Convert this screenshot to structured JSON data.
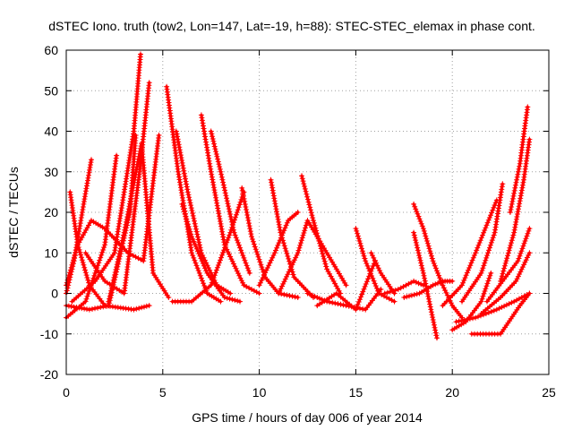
{
  "chart_data": {
    "type": "scatter",
    "title": "dSTEC Iono. truth (tow2, Lon=147, Lat=-19, h=88): STEC-STEC_elemax in phase cont.",
    "xlabel": "GPS time / hours of day 006 of year 2014",
    "ylabel": "dSTEC  / TECUs",
    "xlim": [
      0,
      25
    ],
    "ylim": [
      -20,
      60
    ],
    "xticks": [
      0,
      5,
      10,
      15,
      20,
      25
    ],
    "yticks": [
      -20,
      -10,
      0,
      10,
      20,
      30,
      40,
      50,
      60
    ],
    "grid": true,
    "marker": "+",
    "colors": {
      "series": "#ff0000",
      "grid": "#a0a0a0",
      "axes": "#000000"
    },
    "series": [
      {
        "x": [
          0.2,
          0.6,
          1.2,
          2.0,
          3.5,
          4.3
        ],
        "y": [
          25,
          12,
          2,
          -3,
          -4,
          -3
        ]
      },
      {
        "x": [
          0.0,
          0.4,
          0.9,
          1.3
        ],
        "y": [
          0,
          8,
          22,
          33
        ]
      },
      {
        "x": [
          0.0,
          1.0,
          2.0,
          2.6
        ],
        "y": [
          -6,
          -2,
          12,
          34
        ]
      },
      {
        "x": [
          0.0,
          1.2,
          2.2,
          3.3,
          3.6
        ],
        "y": [
          -3,
          -4,
          -3,
          20,
          39
        ]
      },
      {
        "x": [
          0.3,
          1.5,
          2.5,
          3.5,
          3.85
        ],
        "y": [
          -2,
          3,
          10,
          40,
          59
        ]
      },
      {
        "x": [
          1.0,
          2.0,
          3.0,
          3.8,
          4.3
        ],
        "y": [
          10,
          3,
          0,
          30,
          52
        ]
      },
      {
        "x": [
          0.0,
          0.6,
          1.3,
          2.0,
          3.2,
          4.0,
          4.8
        ],
        "y": [
          2,
          12,
          18,
          16,
          10,
          8,
          39
        ]
      },
      {
        "x": [
          2.2,
          3.0,
          3.9,
          4.5,
          5.3
        ],
        "y": [
          -2,
          15,
          37,
          5,
          -1
        ]
      },
      {
        "x": [
          5.2,
          5.8,
          6.5,
          7.3,
          8.0
        ],
        "y": [
          51,
          30,
          10,
          0,
          -2
        ]
      },
      {
        "x": [
          5.7,
          6.3,
          7.0,
          7.8,
          8.5
        ],
        "y": [
          40,
          25,
          10,
          2,
          0
        ]
      },
      {
        "x": [
          7.0,
          7.5,
          8.2,
          9.2,
          10.0
        ],
        "y": [
          44,
          30,
          12,
          2,
          0
        ]
      },
      {
        "x": [
          7.5,
          8.0,
          8.7,
          9.5
        ],
        "y": [
          40,
          30,
          15,
          5
        ]
      },
      {
        "x": [
          6.0,
          6.5,
          7.3,
          8.2,
          9.0
        ],
        "y": [
          22,
          14,
          5,
          -1,
          -2
        ]
      },
      {
        "x": [
          5.5,
          6.5,
          7.5,
          8.5,
          9.2
        ],
        "y": [
          -2,
          -2,
          2,
          15,
          25
        ]
      },
      {
        "x": [
          9.1,
          9.6,
          10.3,
          11.0,
          12.0
        ],
        "y": [
          26,
          14,
          4,
          0,
          -1
        ]
      },
      {
        "x": [
          10.6,
          11.1,
          11.8,
          12.8
        ],
        "y": [
          28,
          15,
          4,
          -1
        ]
      },
      {
        "x": [
          10.0,
          10.8,
          11.5,
          12.0
        ],
        "y": [
          2,
          10,
          18,
          20
        ]
      },
      {
        "x": [
          12.2,
          12.8,
          13.5,
          14.2
        ],
        "y": [
          29,
          18,
          6,
          0
        ]
      },
      {
        "x": [
          11.0,
          12.0,
          12.5,
          13.5,
          14.5
        ],
        "y": [
          0,
          10,
          18,
          10,
          2
        ]
      },
      {
        "x": [
          12.5,
          13.5,
          14.5,
          15.5,
          16.3
        ],
        "y": [
          0,
          -2,
          -3,
          -4,
          1
        ]
      },
      {
        "x": [
          13.0,
          14.0,
          15.0,
          16.0
        ],
        "y": [
          -3,
          0,
          -4,
          8
        ]
      },
      {
        "x": [
          15.0,
          15.5,
          16.2,
          17.0
        ],
        "y": [
          16,
          8,
          0,
          -2
        ]
      },
      {
        "x": [
          15.8,
          16.3,
          17.0
        ],
        "y": [
          10,
          5,
          0
        ]
      },
      {
        "x": [
          16.5,
          17.2,
          18.0,
          18.5
        ],
        "y": [
          0,
          1,
          3,
          2
        ]
      },
      {
        "x": [
          18.0,
          18.5,
          19.0,
          19.5,
          20.0,
          20.5
        ],
        "y": [
          22,
          16,
          8,
          2,
          -3,
          -6
        ]
      },
      {
        "x": [
          18.0,
          18.5,
          19.2
        ],
        "y": [
          15,
          5,
          -11
        ]
      },
      {
        "x": [
          17.5,
          18.3,
          19.0,
          19.5,
          20.0
        ],
        "y": [
          -1,
          0,
          2,
          3,
          3
        ]
      },
      {
        "x": [
          20.0,
          20.7,
          21.5,
          22.0
        ],
        "y": [
          -9,
          -7,
          -2,
          5
        ]
      },
      {
        "x": [
          19.5,
          20.5,
          21.2,
          22.3
        ],
        "y": [
          -3,
          2,
          10,
          23
        ]
      },
      {
        "x": [
          20.5,
          21.5,
          22.2,
          22.6
        ],
        "y": [
          -2,
          5,
          15,
          27
        ]
      },
      {
        "x": [
          21.0,
          21.6,
          22.5,
          23.5,
          24.0
        ],
        "y": [
          -10,
          -10,
          -10,
          -3,
          0
        ]
      },
      {
        "x": [
          20.2,
          21.2,
          22.3,
          23.2,
          24.0
        ],
        "y": [
          -7,
          -6,
          -4,
          -2,
          0
        ]
      },
      {
        "x": [
          21.5,
          22.5,
          23.3,
          24.0
        ],
        "y": [
          -5,
          -1,
          3,
          10
        ]
      },
      {
        "x": [
          21.8,
          22.6,
          23.4,
          24.0
        ],
        "y": [
          -2,
          3,
          8,
          16
        ]
      },
      {
        "x": [
          22.5,
          23.2,
          23.7,
          24.0
        ],
        "y": [
          3,
          15,
          28,
          38
        ]
      },
      {
        "x": [
          23.0,
          23.5,
          23.9
        ],
        "y": [
          20,
          32,
          46
        ]
      }
    ]
  }
}
